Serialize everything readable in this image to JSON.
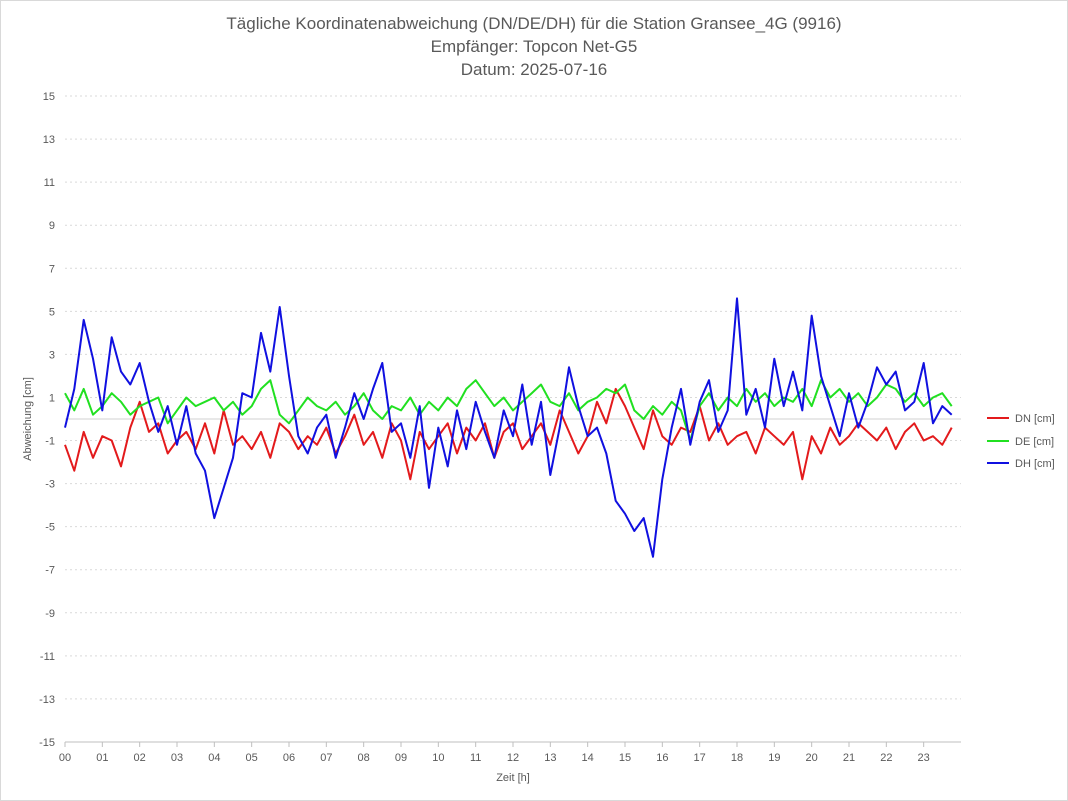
{
  "chart_data": {
    "type": "line",
    "title": "Tägliche Koordinatenabweichung (DN/DE/DH) für die Station Gransee_4G (9916)",
    "subtitle_lines": [
      "Empfänger: Topcon Net-G5",
      "Datum: 2025-07-16"
    ],
    "xlabel": "Zeit [h]",
    "ylabel": "Abweichung [cm]",
    "xlim": [
      0,
      24
    ],
    "ylim": [
      -15,
      15
    ],
    "x_ticks": [
      0,
      1,
      2,
      3,
      4,
      5,
      6,
      7,
      8,
      9,
      10,
      11,
      12,
      13,
      14,
      15,
      16,
      17,
      18,
      19,
      20,
      21,
      22,
      23
    ],
    "x_tick_labels": [
      "00",
      "01",
      "02",
      "03",
      "04",
      "05",
      "06",
      "07",
      "08",
      "09",
      "10",
      "11",
      "12",
      "13",
      "14",
      "15",
      "16",
      "17",
      "18",
      "19",
      "20",
      "21",
      "22",
      "23"
    ],
    "y_ticks": [
      -15,
      -13,
      -11,
      -9,
      -7,
      -5,
      -3,
      -1,
      1,
      3,
      5,
      7,
      9,
      11,
      13,
      15
    ],
    "grid": "horizontal-dotted",
    "legend_position": "right",
    "x": [
      0,
      0.25,
      0.5,
      0.75,
      1,
      1.25,
      1.5,
      1.75,
      2,
      2.25,
      2.5,
      2.75,
      3,
      3.25,
      3.5,
      3.75,
      4,
      4.25,
      4.5,
      4.75,
      5,
      5.25,
      5.5,
      5.75,
      6,
      6.25,
      6.5,
      6.75,
      7,
      7.25,
      7.5,
      7.75,
      8,
      8.25,
      8.5,
      8.75,
      9,
      9.25,
      9.5,
      9.75,
      10,
      10.25,
      10.5,
      10.75,
      11,
      11.25,
      11.5,
      11.75,
      12,
      12.25,
      12.5,
      12.75,
      13,
      13.25,
      13.5,
      13.75,
      14,
      14.25,
      14.5,
      14.75,
      15,
      15.25,
      15.5,
      15.75,
      16,
      16.25,
      16.5,
      16.75,
      17,
      17.25,
      17.5,
      17.75,
      18,
      18.25,
      18.5,
      18.75,
      19,
      19.25,
      19.5,
      19.75,
      20,
      20.25,
      20.5,
      20.75,
      21,
      21.25,
      21.5,
      21.75,
      22,
      22.25,
      22.5,
      22.75,
      23,
      23.25,
      23.5,
      23.75
    ],
    "series": [
      {
        "name": "DN [cm]",
        "color": "#e31a1c",
        "values": [
          -1.2,
          -2.4,
          -0.6,
          -1.8,
          -0.8,
          -1.0,
          -2.2,
          -0.4,
          0.8,
          -0.6,
          -0.2,
          -1.6,
          -1.0,
          -0.6,
          -1.4,
          -0.2,
          -1.6,
          0.4,
          -1.2,
          -0.8,
          -1.4,
          -0.6,
          -1.8,
          -0.2,
          -0.6,
          -1.4,
          -0.8,
          -1.2,
          -0.4,
          -1.6,
          -0.8,
          0.2,
          -1.2,
          -0.6,
          -1.8,
          -0.2,
          -1.0,
          -2.8,
          -0.6,
          -1.4,
          -0.8,
          -0.2,
          -1.6,
          -0.4,
          -1.0,
          -0.2,
          -1.8,
          -0.6,
          -0.2,
          -1.4,
          -0.8,
          -0.2,
          -1.2,
          0.4,
          -0.6,
          -1.6,
          -0.8,
          0.8,
          -0.2,
          1.4,
          0.6,
          -0.4,
          -1.4,
          0.4,
          -0.8,
          -1.2,
          -0.4,
          -0.6,
          0.6,
          -1.0,
          -0.2,
          -1.2,
          -0.8,
          -0.6,
          -1.6,
          -0.4,
          -0.8,
          -1.2,
          -0.6,
          -2.8,
          -0.8,
          -1.6,
          -0.4,
          -1.2,
          -0.8,
          -0.2,
          -0.6,
          -1.0,
          -0.4,
          -1.4,
          -0.6,
          -0.2,
          -1.0,
          -0.8,
          -1.2,
          -0.4
        ]
      },
      {
        "name": "DE [cm]",
        "color": "#21e021",
        "values": [
          1.2,
          0.4,
          1.4,
          0.2,
          0.6,
          1.2,
          0.8,
          0.2,
          0.6,
          0.8,
          1.0,
          -0.2,
          0.4,
          1.0,
          0.6,
          0.8,
          1.0,
          0.4,
          0.8,
          0.2,
          0.6,
          1.4,
          1.8,
          0.2,
          -0.2,
          0.4,
          1.0,
          0.6,
          0.4,
          0.8,
          0.2,
          0.6,
          1.2,
          0.4,
          0.0,
          0.6,
          0.4,
          1.0,
          0.2,
          0.8,
          0.4,
          1.0,
          0.6,
          1.4,
          1.8,
          1.2,
          0.6,
          1.0,
          0.4,
          0.8,
          1.2,
          1.6,
          0.8,
          0.6,
          1.2,
          0.4,
          0.8,
          1.0,
          1.4,
          1.2,
          1.6,
          0.4,
          0.0,
          0.6,
          0.2,
          0.8,
          0.4,
          -1.0,
          0.6,
          1.2,
          0.4,
          1.0,
          0.6,
          1.4,
          0.8,
          1.2,
          0.6,
          1.0,
          0.8,
          1.4,
          0.6,
          1.8,
          1.0,
          1.4,
          0.8,
          1.2,
          0.6,
          1.0,
          1.6,
          1.4,
          0.8,
          1.2,
          0.6,
          1.0,
          1.2,
          0.6
        ]
      },
      {
        "name": "DH [cm]",
        "color": "#1010e0",
        "values": [
          -0.4,
          1.4,
          4.6,
          2.8,
          0.4,
          3.8,
          2.2,
          1.6,
          2.6,
          0.8,
          -0.6,
          0.6,
          -1.2,
          0.6,
          -1.6,
          -2.4,
          -4.6,
          -3.2,
          -1.8,
          1.2,
          1.0,
          4.0,
          2.2,
          5.2,
          2.0,
          -0.8,
          -1.6,
          -0.4,
          0.2,
          -1.8,
          -0.4,
          1.2,
          0.0,
          1.4,
          2.6,
          -0.6,
          -0.2,
          -1.8,
          0.6,
          -3.2,
          -0.4,
          -2.2,
          0.4,
          -1.4,
          0.8,
          -0.6,
          -1.8,
          0.4,
          -0.8,
          1.6,
          -1.2,
          0.8,
          -2.6,
          -0.4,
          2.4,
          0.6,
          -0.8,
          -0.4,
          -1.6,
          -3.8,
          -4.4,
          -5.2,
          -4.6,
          -6.4,
          -2.8,
          -0.4,
          1.4,
          -1.2,
          0.8,
          1.8,
          -0.6,
          0.4,
          5.6,
          0.2,
          1.4,
          -0.4,
          2.8,
          0.6,
          2.2,
          0.4,
          4.8,
          2.0,
          0.6,
          -0.8,
          1.2,
          -0.4,
          0.8,
          2.4,
          1.6,
          2.2,
          0.4,
          0.8,
          2.6,
          -0.2,
          0.6,
          0.2
        ]
      }
    ]
  }
}
